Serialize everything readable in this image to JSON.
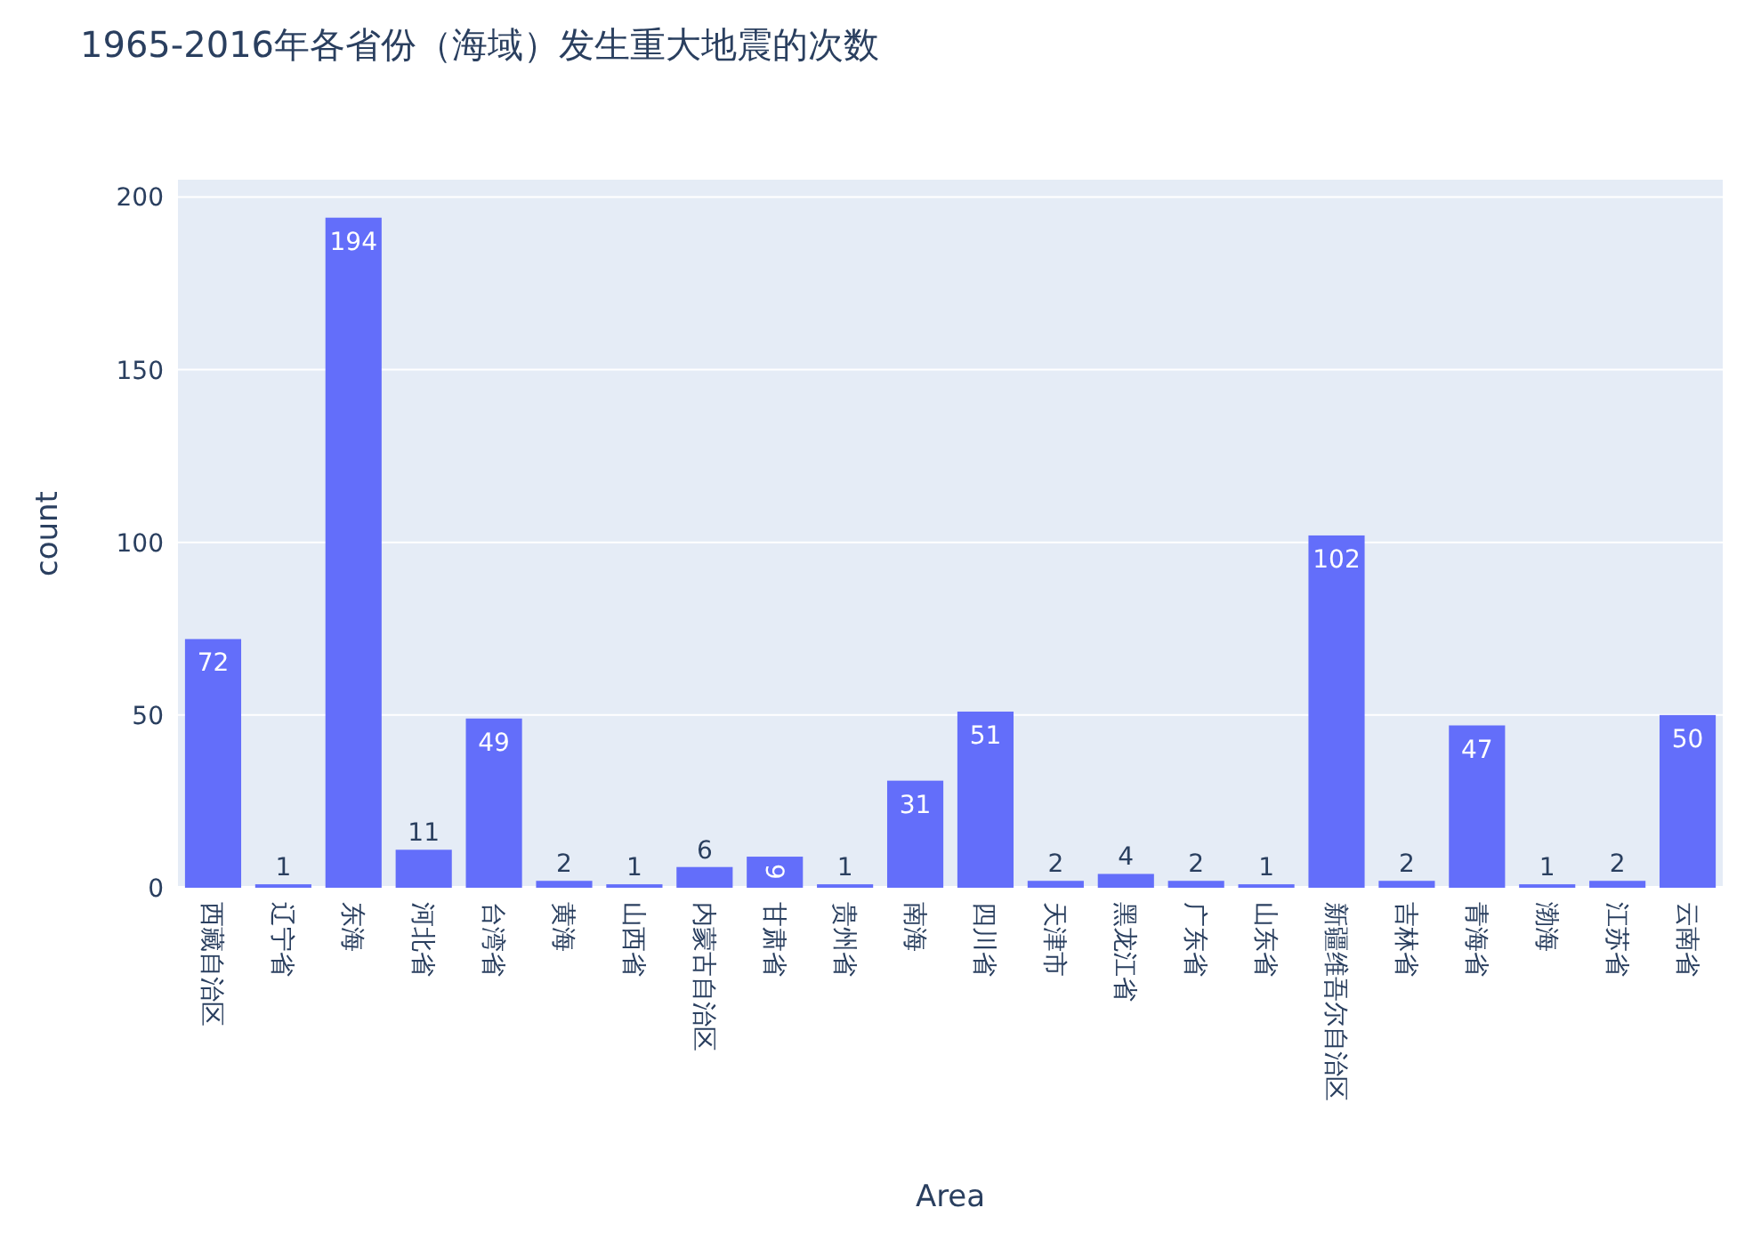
{
  "chart_data": {
    "type": "bar",
    "title": "1965-2016年各省份（海域）发生重大地震的次数",
    "xlabel": "Area",
    "ylabel": "count",
    "categories": [
      "西藏自治区",
      "辽宁省",
      "东海",
      "河北省",
      "台湾省",
      "黄海",
      "山西省",
      "内蒙古自治区",
      "甘肃省",
      "贵州省",
      "南海",
      "四川省",
      "天津市",
      "黑龙江省",
      "广东省",
      "山东省",
      "新疆维吾尔自治区",
      "吉林省",
      "青海省",
      "渤海",
      "江苏省",
      "云南省"
    ],
    "values": [
      72,
      1,
      194,
      11,
      49,
      2,
      1,
      6,
      9,
      1,
      31,
      51,
      2,
      4,
      2,
      1,
      102,
      2,
      47,
      1,
      2,
      50
    ],
    "color": "#636efa",
    "ylim": [
      0,
      205
    ],
    "yticks": [
      0,
      50,
      100,
      150,
      200
    ],
    "grid": "y",
    "data_labels": true
  }
}
